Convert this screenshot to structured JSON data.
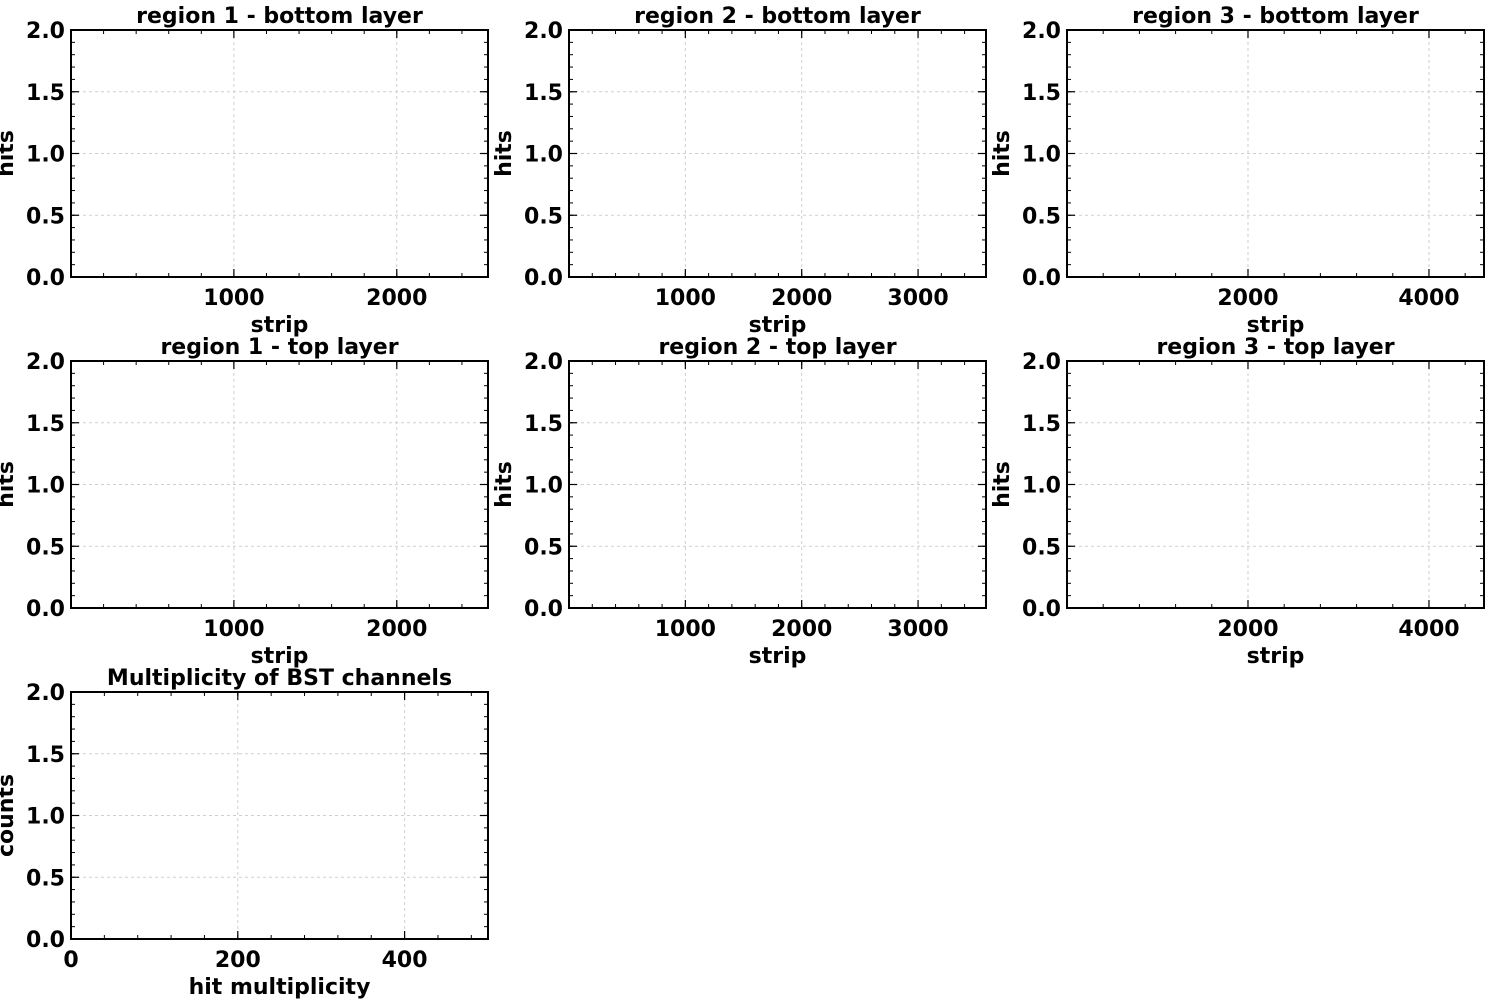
{
  "chart_data": [
    {
      "type": "bar",
      "title": "region 1 - bottom layer",
      "xlabel": "strip",
      "ylabel": "hits",
      "xlim": [
        0,
        2560
      ],
      "ylim": [
        0,
        2
      ],
      "xticks": [
        1000,
        2000
      ],
      "xtick_labels": [
        "1000",
        "2000"
      ],
      "yticks": [
        0,
        0.5,
        1,
        1.5,
        2
      ],
      "ytick_labels": [
        "0.0",
        "0.5",
        "1.0",
        "1.5",
        "2.0"
      ],
      "grid": true,
      "x": [],
      "values": []
    },
    {
      "type": "bar",
      "title": "region 2 - bottom layer",
      "xlabel": "strip",
      "ylabel": "hits",
      "xlim": [
        0,
        3584
      ],
      "ylim": [
        0,
        2
      ],
      "xticks": [
        1000,
        2000,
        3000
      ],
      "xtick_labels": [
        "1000",
        "2000",
        "3000"
      ],
      "yticks": [
        0,
        0.5,
        1,
        1.5,
        2
      ],
      "ytick_labels": [
        "0.0",
        "0.5",
        "1.0",
        "1.5",
        "2.0"
      ],
      "grid": true,
      "x": [],
      "values": []
    },
    {
      "type": "bar",
      "title": "region 3 - bottom layer",
      "xlabel": "strip",
      "ylabel": "hits",
      "xlim": [
        0,
        4608
      ],
      "ylim": [
        0,
        2
      ],
      "xticks": [
        2000,
        4000
      ],
      "xtick_labels": [
        "2000",
        "4000"
      ],
      "yticks": [
        0,
        0.5,
        1,
        1.5,
        2
      ],
      "ytick_labels": [
        "0.0",
        "0.5",
        "1.0",
        "1.5",
        "2.0"
      ],
      "grid": true,
      "x": [],
      "values": []
    },
    {
      "type": "bar",
      "title": "region 1 - top layer",
      "xlabel": "strip",
      "ylabel": "hits",
      "xlim": [
        0,
        2560
      ],
      "ylim": [
        0,
        2
      ],
      "xticks": [
        1000,
        2000
      ],
      "xtick_labels": [
        "1000",
        "2000"
      ],
      "yticks": [
        0,
        0.5,
        1,
        1.5,
        2
      ],
      "ytick_labels": [
        "0.0",
        "0.5",
        "1.0",
        "1.5",
        "2.0"
      ],
      "grid": true,
      "x": [],
      "values": []
    },
    {
      "type": "bar",
      "title": "region 2 - top layer",
      "xlabel": "strip",
      "ylabel": "hits",
      "xlim": [
        0,
        3584
      ],
      "ylim": [
        0,
        2
      ],
      "xticks": [
        1000,
        2000,
        3000
      ],
      "xtick_labels": [
        "1000",
        "2000",
        "3000"
      ],
      "yticks": [
        0,
        0.5,
        1,
        1.5,
        2
      ],
      "ytick_labels": [
        "0.0",
        "0.5",
        "1.0",
        "1.5",
        "2.0"
      ],
      "grid": true,
      "x": [],
      "values": []
    },
    {
      "type": "bar",
      "title": "region 3 - top layer",
      "xlabel": "strip",
      "ylabel": "hits",
      "xlim": [
        0,
        4608
      ],
      "ylim": [
        0,
        2
      ],
      "xticks": [
        2000,
        4000
      ],
      "xtick_labels": [
        "2000",
        "4000"
      ],
      "yticks": [
        0,
        0.5,
        1,
        1.5,
        2
      ],
      "ytick_labels": [
        "0.0",
        "0.5",
        "1.0",
        "1.5",
        "2.0"
      ],
      "grid": true,
      "x": [],
      "values": []
    },
    {
      "type": "bar",
      "title": "Multiplicity of BST channels",
      "xlabel": "hit multiplicity",
      "ylabel": "counts",
      "xlim": [
        0,
        500
      ],
      "ylim": [
        0,
        2
      ],
      "xticks": [
        0,
        200,
        400
      ],
      "xtick_labels": [
        "0",
        "200",
        "400"
      ],
      "yticks": [
        0,
        0.5,
        1,
        1.5,
        2
      ],
      "ytick_labels": [
        "0.0",
        "0.5",
        "1.0",
        "1.5",
        "2.0"
      ],
      "grid": true,
      "x": [],
      "values": []
    }
  ]
}
